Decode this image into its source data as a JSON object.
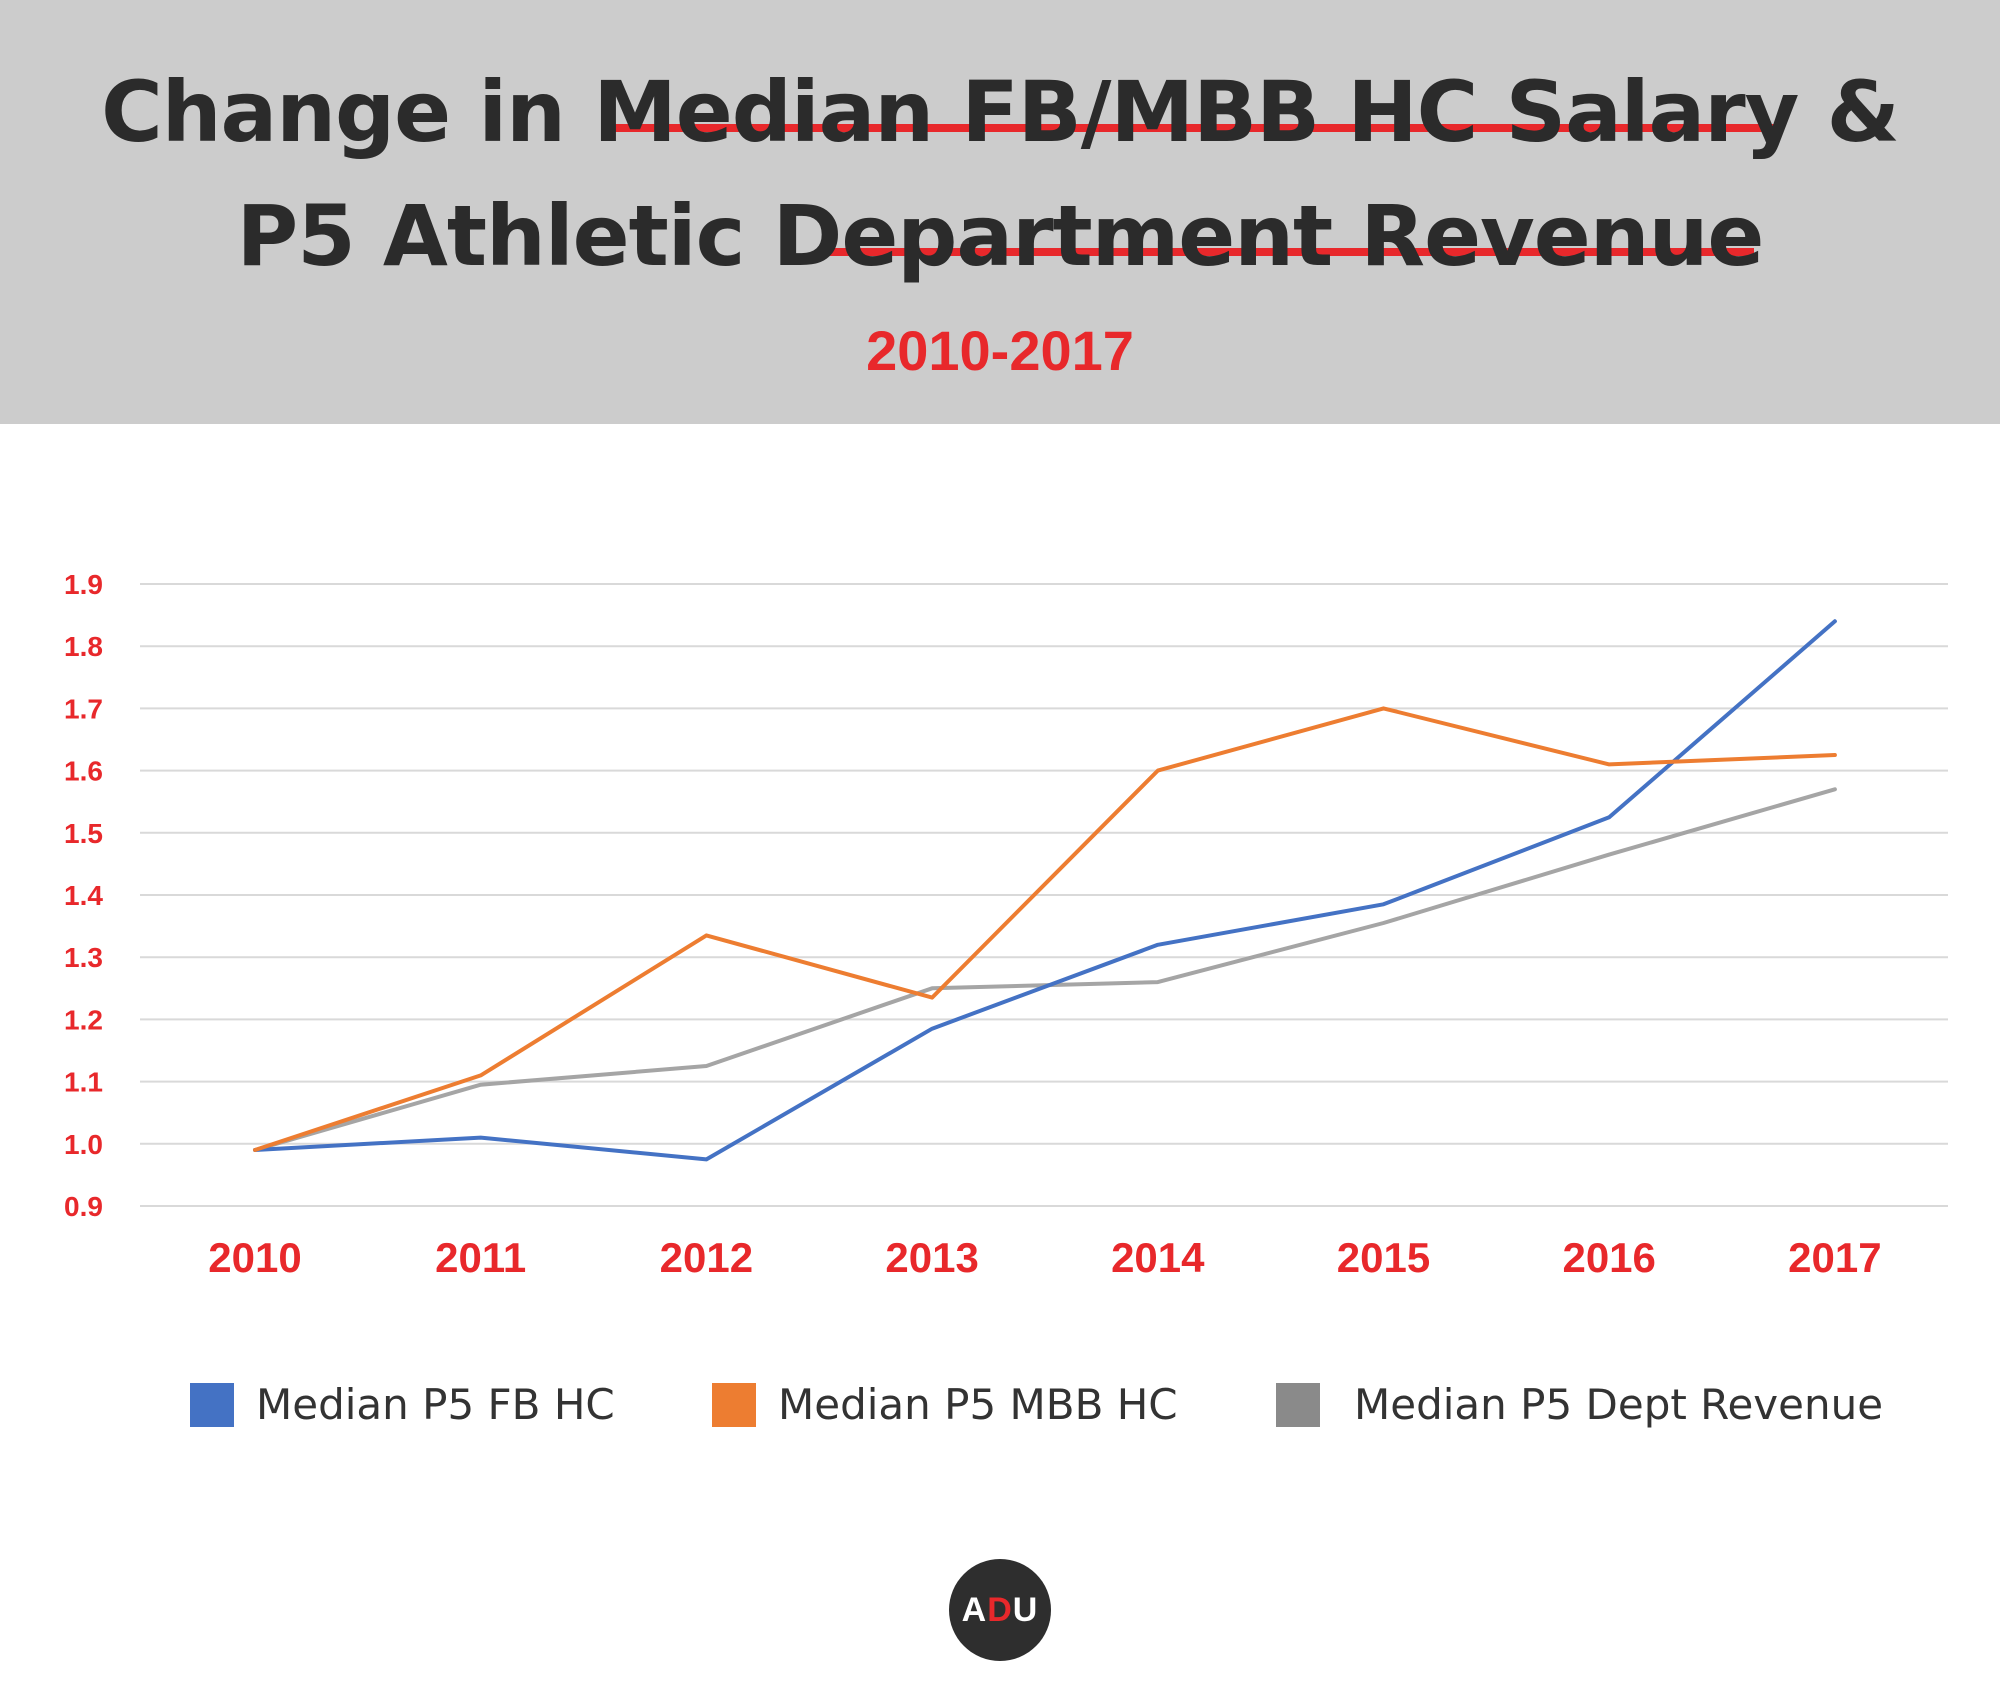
{
  "header": {
    "title_line1": "Change in Median FB/MBB HC Salary &",
    "title_line2": "P5 Athletic Department Revenue",
    "subtitle": "2010-2017"
  },
  "colors": {
    "header_bg": "#cccccc",
    "accent_red": "#e8282b",
    "fb_blue": "#4472c4",
    "mbb_orange": "#ed7d31",
    "revenue_gray": "#a5a5a5",
    "legend_gray": "#8a8a8a"
  },
  "chart_data": {
    "type": "line",
    "x": [
      "2010",
      "2011",
      "2012",
      "2013",
      "2014",
      "2015",
      "2016",
      "2017"
    ],
    "y_ticks": [
      "0.9",
      "1.0",
      "1.1",
      "1.2",
      "1.3",
      "1.4",
      "1.5",
      "1.6",
      "1.7",
      "1.8",
      "1.9"
    ],
    "ylim": [
      0.9,
      1.9
    ],
    "grid": true,
    "legend_position": "bottom",
    "series": [
      {
        "name": "Median P5 FB HC",
        "color": "#4472c4",
        "values": [
          0.99,
          1.01,
          0.975,
          1.185,
          1.32,
          1.385,
          1.525,
          1.84
        ]
      },
      {
        "name": "Median P5 MBB HC",
        "color": "#ed7d31",
        "values": [
          0.99,
          1.11,
          1.335,
          1.235,
          1.6,
          1.7,
          1.61,
          1.625
        ]
      },
      {
        "name": "Median P5 Dept Revenue",
        "color": "#a5a5a5",
        "values": [
          0.99,
          1.095,
          1.125,
          1.25,
          1.26,
          1.355,
          1.465,
          1.57
        ]
      }
    ]
  },
  "logo": {
    "text_a": "A",
    "text_d": "D",
    "text_u": "U"
  }
}
